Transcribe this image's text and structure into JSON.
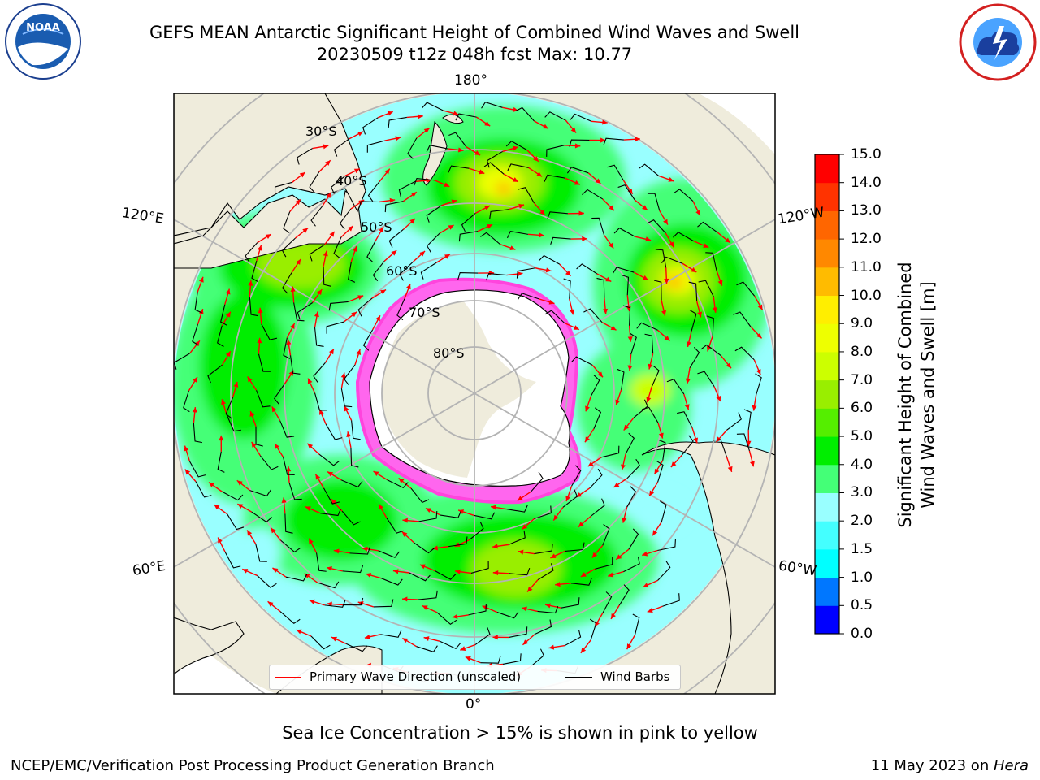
{
  "header": {
    "title_line1": "GEFS MEAN Antarctic Significant Height of Combined Wind Waves and Swell",
    "title_line2": "20230509 t12z 048h fcst   Max: 10.77"
  },
  "logos": {
    "left": {
      "icon": "noaa-logo",
      "text": "NOAA"
    },
    "right": {
      "icon": "national-weather-service-logo"
    }
  },
  "map": {
    "projection": "south-polar-stereographic",
    "lon_labels": {
      "top": "180°",
      "upper_left": "120°E",
      "upper_right": "120°W",
      "lower_left": "60°E",
      "lower_right": "60°W",
      "bottom": "0°"
    },
    "lat_labels": [
      "30°S",
      "40°S",
      "50°S",
      "60°S",
      "70°S",
      "80°S"
    ],
    "colors": {
      "land": "#efecdc",
      "ice_sheet": "#ffffff",
      "sea_ice": "#ff44dd",
      "primary_wave_direction": "#ff0000",
      "wind_barbs": "#000000",
      "graticule": "#b4b4b4"
    }
  },
  "colorbar": {
    "title_line1": "Significant Height of Combined",
    "title_line2": "Wind Waves and Swell [m]",
    "ticks": [
      "0.0",
      "0.5",
      "1.0",
      "1.5",
      "2.0",
      "3.0",
      "4.0",
      "5.0",
      "6.0",
      "7.0",
      "8.0",
      "9.0",
      "10.0",
      "11.0",
      "12.0",
      "13.0",
      "14.0",
      "15.0"
    ],
    "colors": [
      "#0000ff",
      "#0077ff",
      "#00ffff",
      "#44ffff",
      "#99ffff",
      "#44ff77",
      "#00ee00",
      "#55ee00",
      "#99ee00",
      "#ccff00",
      "#eeff00",
      "#ffee00",
      "#ffbb00",
      "#ff8800",
      "#ff6600",
      "#ff3300",
      "#ff0000"
    ]
  },
  "legend": {
    "primary_wave": "Primary Wave Direction (unscaled)",
    "wind_barbs": "Wind Barbs"
  },
  "caption": "Sea Ice Concentration > 15% is shown in pink to yellow",
  "footer": {
    "left": "NCEP/EMC/Verification Post Processing Product Generation Branch",
    "date": "11 May 2023 on ",
    "host": "Hera"
  }
}
